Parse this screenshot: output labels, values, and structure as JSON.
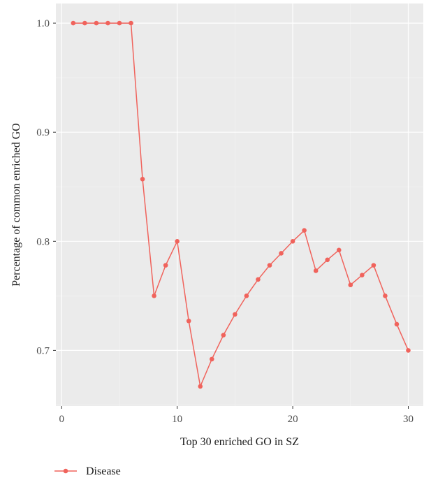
{
  "chart_data": {
    "type": "line",
    "title": "",
    "xlabel": "Top 30 enriched GO in SZ",
    "ylabel": "Percentage of common enriched GO",
    "xlim": [
      -0.5,
      31.3
    ],
    "ylim": [
      0.649,
      1.018
    ],
    "xticks": [
      0,
      10,
      20,
      30
    ],
    "xtick_labels": [
      "0",
      "10",
      "20",
      "30"
    ],
    "yticks": [
      0.7,
      0.8,
      0.9,
      1.0
    ],
    "ytick_labels": [
      "0.7",
      "0.8",
      "0.9",
      "1.0"
    ],
    "grid": true,
    "legend_position": "bottom-left",
    "series": [
      {
        "name": "Disease",
        "color": "#f0635c",
        "x": [
          1,
          2,
          3,
          4,
          5,
          6,
          7,
          8,
          9,
          10,
          11,
          12,
          13,
          14,
          15,
          16,
          17,
          18,
          19,
          20,
          21,
          22,
          23,
          24,
          25,
          26,
          27,
          28,
          29,
          30
        ],
        "values": [
          1.0,
          1.0,
          1.0,
          1.0,
          1.0,
          1.0,
          0.857,
          0.75,
          0.778,
          0.8,
          0.727,
          0.667,
          0.692,
          0.714,
          0.733,
          0.75,
          0.765,
          0.778,
          0.789,
          0.8,
          0.81,
          0.773,
          0.783,
          0.792,
          0.76,
          0.769,
          0.778,
          0.75,
          0.724,
          0.7
        ]
      }
    ]
  }
}
